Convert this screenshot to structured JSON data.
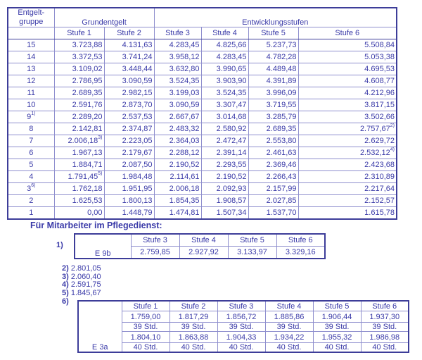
{
  "colors": {
    "text": "#3a3aa8",
    "border_light": "#8f8fce",
    "border_dark": "#3d3d99"
  },
  "main_table": {
    "header": {
      "group_line1": "Entgelt-",
      "group_line2": "gruppe",
      "grundentgelt": "Grundentgelt",
      "entwicklungsstufen": "Entwicklungsstufen",
      "stufen": [
        "Stufe 1",
        "Stufe 2",
        "Stufe 3",
        "Stufe 4",
        "Stufe 5",
        "Stufe 6"
      ]
    },
    "rows": [
      {
        "group": "15",
        "values": [
          "3.723,88",
          "4.131,63",
          "4.283,45",
          "4.825,66",
          "5.237,73",
          "5.508,84"
        ]
      },
      {
        "group": "14",
        "values": [
          "3.372,53",
          "3.741,24",
          "3.958,12",
          "4.283,45",
          "4.782,28",
          "5.053,38"
        ]
      },
      {
        "group": "13",
        "values": [
          "3.109,02",
          "3.448,44",
          "3.632,80",
          "3.990,65",
          "4.489,48",
          "4.695,53"
        ]
      },
      {
        "group": "12",
        "values": [
          "2.786,95",
          "3.090,59",
          "3.524,35",
          "3.903,90",
          "4.391,89",
          "4.608,77"
        ]
      },
      {
        "group": "11",
        "values": [
          "2.689,35",
          "2.982,15",
          "3.199,03",
          "3.524,35",
          "3.996,09",
          "4.212,96"
        ]
      },
      {
        "group": "10",
        "values": [
          "2.591,76",
          "2.873,70",
          "3.090,59",
          "3.307,47",
          "3.719,55",
          "3.817,15"
        ]
      },
      {
        "group": "9^1)",
        "values": [
          "2.289,20",
          "2.537,53",
          "2.667,67",
          "3.014,68",
          "3.285,79",
          "3.502,66"
        ]
      },
      {
        "group": "8",
        "values": [
          "2.142,81",
          "2.374,87",
          "2.483,32",
          "2.580,92",
          "2.689,35",
          "2.757,67^2)"
        ]
      },
      {
        "group": "7",
        "values": [
          "2.006,18^3)",
          "2.223,05",
          "2.364,03",
          "2.472,47",
          "2.553,80",
          "2.629,72"
        ]
      },
      {
        "group": "6",
        "values": [
          "1.967,13",
          "2.179,67",
          "2.288,12",
          "2.391,14",
          "2.461,63",
          "2.532,12^4)"
        ]
      },
      {
        "group": "5",
        "values": [
          "1.884,71",
          "2.087,50",
          "2.190,52",
          "2.293,55",
          "2.369,46",
          "2.423,68"
        ]
      },
      {
        "group": "4",
        "values": [
          "1.791,45^5)",
          "1.984,48",
          "2.114,61",
          "2.190,52",
          "2.266,43",
          "2.310,89"
        ]
      },
      {
        "group": "3^6)",
        "values": [
          "1.762,18",
          "1.951,95",
          "2.006,18",
          "2.092,93",
          "2.157,99",
          "2.217,64"
        ]
      },
      {
        "group": "2",
        "values": [
          "1.625,53",
          "1.800,13",
          "1.854,35",
          "1.908,57",
          "2.027,85",
          "2.152,57"
        ]
      },
      {
        "group": "1",
        "values": [
          "0,00",
          "1.448,79",
          "1.474,81",
          "1.507,34",
          "1.537,70",
          "1.615,78"
        ]
      }
    ]
  },
  "pflege": {
    "heading": "Für Mitarbeiter im Pflegedienst:",
    "note1": {
      "label": "1)",
      "row_label": "E 9b",
      "stufen": [
        "Stufe 3",
        "Stufe 4",
        "Stufe 5",
        "Stufe 6"
      ],
      "values": [
        "2.759,85",
        "2.927,92",
        "3.133,97",
        "3.329,16"
      ]
    },
    "footnotes": [
      {
        "label": "2)",
        "value": "2.801,05"
      },
      {
        "label": "3)",
        "value": "2.060,40"
      },
      {
        "label": "4)",
        "value": "2.591,75"
      },
      {
        "label": "5)",
        "value": "1.845,67"
      }
    ],
    "note6": {
      "label": "6)",
      "row_label": "E 3a",
      "stufen": [
        "Stufe 1",
        "Stufe 2",
        "Stufe 3",
        "Stufe 4",
        "Stufe 5",
        "Stufe 6"
      ],
      "rows": [
        {
          "type": "value",
          "cells": [
            "1.759,00",
            "1.817,29",
            "1.856,72",
            "1.885,86",
            "1.906,44",
            "1.937,30"
          ]
        },
        {
          "type": "hours",
          "cells": [
            "39 Std.",
            "39 Std.",
            "39 Std.",
            "39 Std.",
            "39 Std.",
            "39 Std."
          ]
        },
        {
          "type": "value",
          "cells": [
            "1.804,10",
            "1.863,88",
            "1.904,33",
            "1.934,22",
            "1.955,32",
            "1.986,98"
          ]
        },
        {
          "type": "hours",
          "cells": [
            "40 Std.",
            "40 Std.",
            "40 Std.",
            "40 Std.",
            "40 Std.",
            "40 Std."
          ]
        }
      ]
    }
  }
}
